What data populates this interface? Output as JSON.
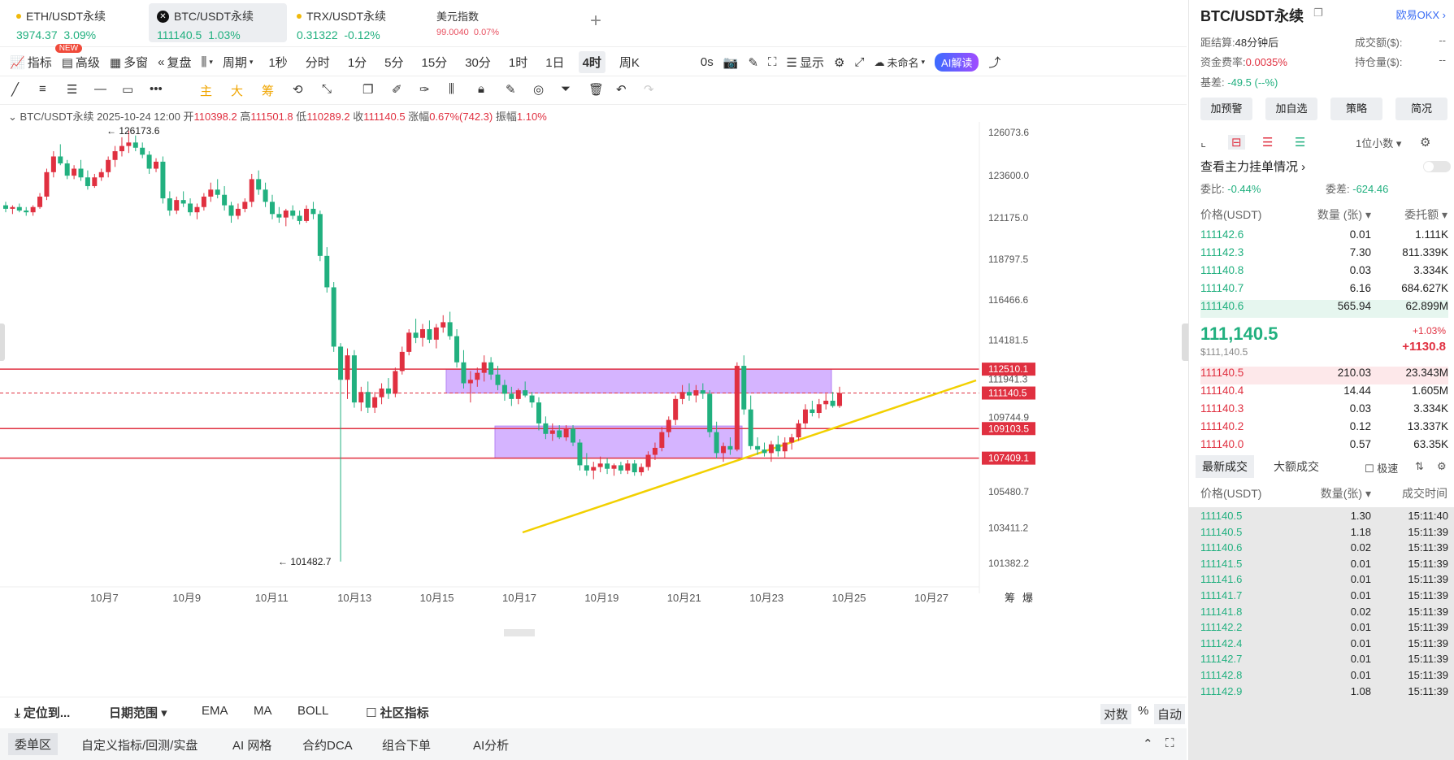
{
  "tabs": [
    {
      "name": "ETH/USDT永续",
      "price": "3974.37",
      "change": "3.09%"
    },
    {
      "name": "BTC/USDT永续",
      "price": "111140.5",
      "change": "1.03%"
    },
    {
      "name": "TRX/USDT永续",
      "price": "0.31322",
      "change": "-0.12%"
    },
    {
      "name": "美元指数",
      "price": "99.0040",
      "change": "0.07%"
    }
  ],
  "new_badge": "NEW",
  "toolbar": {
    "indicators": "指标",
    "advanced": "高级",
    "multi": "多窗",
    "replay": "复盘",
    "period": "周期",
    "intervals": [
      "1秒",
      "分时",
      "1分",
      "5分",
      "15分",
      "30分",
      "1时",
      "1日",
      "4时",
      "周K"
    ],
    "selected_interval": "4时",
    "countdown": "0s",
    "display": "显示",
    "layout": "未命名",
    "ai": "AI解读"
  },
  "drawbar": {
    "main": "主",
    "big": "大",
    "chip": "筹"
  },
  "ohlc": {
    "symbol": "BTC/USDT永续",
    "time": "2025-10-24 12:00",
    "open_label": "开",
    "open": "110398.2",
    "high_label": "高",
    "high": "111501.8",
    "low_label": "低",
    "low": "110289.2",
    "close_label": "收",
    "close": "111140.5",
    "chg_label": "涨幅",
    "chg": "0.67%(742.3)",
    "amp_label": "振幅",
    "amp": "1.10%"
  },
  "chart_data": {
    "type": "candlestick",
    "y_ticks": [
      "126073.6",
      "123600.0",
      "121175.0",
      "118797.5",
      "116466.6",
      "114181.5",
      "111941.3",
      "109744.9",
      "105480.7",
      "103411.2",
      "101382.2"
    ],
    "x_ticks": [
      "10月7",
      "10月9",
      "10月11",
      "10月13",
      "10月15",
      "10月17",
      "10月19",
      "10月21",
      "10月23",
      "10月25",
      "10月27"
    ],
    "high_label": "126173.6",
    "low_label": "101482.7",
    "h_lines": [
      "112510.1",
      "111140.5",
      "109103.5",
      "107409.1"
    ],
    "corner_labels": [
      "筹",
      "爆"
    ],
    "candles": [
      [
        121900,
        122100,
        121500,
        121700
      ],
      [
        121700,
        121900,
        121400,
        121800
      ],
      [
        121800,
        122000,
        121500,
        121600
      ],
      [
        121600,
        121800,
        121300,
        121500
      ],
      [
        121500,
        121900,
        121300,
        121800
      ],
      [
        121800,
        122600,
        121700,
        122400
      ],
      [
        122400,
        124000,
        122200,
        123800
      ],
      [
        123800,
        125000,
        123500,
        124700
      ],
      [
        124700,
        125400,
        124200,
        124300
      ],
      [
        124300,
        124500,
        123400,
        123600
      ],
      [
        123600,
        124200,
        123400,
        124000
      ],
      [
        124000,
        124500,
        123300,
        123500
      ],
      [
        123500,
        123900,
        122800,
        123000
      ],
      [
        123000,
        123700,
        122900,
        123500
      ],
      [
        123500,
        124000,
        123300,
        123800
      ],
      [
        123800,
        124700,
        123500,
        124500
      ],
      [
        124500,
        125300,
        124100,
        125000
      ],
      [
        125000,
        125800,
        124700,
        125300
      ],
      [
        125300,
        126173,
        124900,
        125500
      ],
      [
        125500,
        125900,
        125000,
        125200
      ],
      [
        125200,
        125500,
        124600,
        124800
      ],
      [
        124800,
        125000,
        123700,
        124000
      ],
      [
        124000,
        124600,
        123800,
        124400
      ],
      [
        124400,
        124700,
        122000,
        122300
      ],
      [
        122300,
        122700,
        121300,
        121600
      ],
      [
        121600,
        122400,
        121400,
        122200
      ],
      [
        122200,
        122700,
        121800,
        122000
      ],
      [
        122000,
        122300,
        121300,
        121500
      ],
      [
        121500,
        122000,
        121100,
        121800
      ],
      [
        121800,
        122600,
        121600,
        122400
      ],
      [
        122400,
        123200,
        122100,
        122800
      ],
      [
        122800,
        123400,
        122300,
        122500
      ],
      [
        122500,
        123000,
        121600,
        121900
      ],
      [
        121900,
        122100,
        120900,
        121300
      ],
      [
        121300,
        122000,
        121100,
        121700
      ],
      [
        121700,
        122300,
        121500,
        122100
      ],
      [
        122100,
        123700,
        121800,
        123400
      ],
      [
        123400,
        123900,
        122500,
        122800
      ],
      [
        122800,
        123200,
        121800,
        122100
      ],
      [
        122100,
        122500,
        121100,
        121400
      ],
      [
        121400,
        121800,
        120900,
        121200
      ],
      [
        121200,
        121700,
        120700,
        121600
      ],
      [
        121600,
        121900,
        121100,
        121300
      ],
      [
        121300,
        121600,
        120800,
        121000
      ],
      [
        121000,
        121900,
        120900,
        121700
      ],
      [
        121700,
        122100,
        121100,
        121400
      ],
      [
        121400,
        121600,
        118700,
        119000
      ],
      [
        119000,
        119500,
        116900,
        117200
      ],
      [
        117200,
        117500,
        113500,
        113800
      ],
      [
        113800,
        114000,
        101483,
        111900
      ],
      [
        111900,
        113700,
        110800,
        113300
      ],
      [
        113300,
        113600,
        110300,
        110600
      ],
      [
        110600,
        111500,
        110100,
        111200
      ],
      [
        111200,
        111800,
        110000,
        110300
      ],
      [
        110300,
        111200,
        110000,
        110900
      ],
      [
        110900,
        111700,
        110500,
        111400
      ],
      [
        111400,
        112000,
        110800,
        111100
      ],
      [
        111100,
        112600,
        110900,
        112400
      ],
      [
        112400,
        113800,
        112200,
        113500
      ],
      [
        113500,
        114800,
        113300,
        114600
      ],
      [
        114600,
        115400,
        114000,
        114300
      ],
      [
        114300,
        115100,
        113800,
        114800
      ],
      [
        114800,
        115300,
        114000,
        114200
      ],
      [
        114200,
        115100,
        113700,
        114900
      ],
      [
        114900,
        115600,
        114600,
        115200
      ],
      [
        115200,
        115800,
        114200,
        114400
      ],
      [
        114400,
        114800,
        112600,
        112900
      ],
      [
        112900,
        113600,
        111400,
        111700
      ],
      [
        111700,
        112400,
        110600,
        111900
      ],
      [
        111900,
        112600,
        111500,
        112300
      ],
      [
        112300,
        113300,
        111800,
        112900
      ],
      [
        112900,
        113200,
        111900,
        112200
      ],
      [
        112200,
        112700,
        111300,
        111600
      ],
      [
        111600,
        111900,
        110700,
        111100
      ],
      [
        111100,
        111500,
        110400,
        110800
      ],
      [
        110800,
        111400,
        110500,
        111300
      ],
      [
        111300,
        111800,
        110900,
        111000
      ],
      [
        111000,
        111200,
        110300,
        110600
      ],
      [
        110600,
        110900,
        109000,
        109400
      ],
      [
        109400,
        109800,
        108500,
        108800
      ],
      [
        108800,
        109400,
        108400,
        109000
      ],
      [
        109000,
        109300,
        108500,
        108600
      ],
      [
        108600,
        109300,
        108400,
        109100
      ],
      [
        109100,
        109300,
        108100,
        108300
      ],
      [
        108300,
        108500,
        106700,
        107000
      ],
      [
        107000,
        107700,
        106400,
        106700
      ],
      [
        106700,
        107200,
        106200,
        106900
      ],
      [
        106900,
        107500,
        106600,
        107100
      ],
      [
        107100,
        107400,
        106500,
        106800
      ],
      [
        106800,
        107100,
        106400,
        107000
      ],
      [
        107000,
        107200,
        106500,
        106700
      ],
      [
        106700,
        107300,
        106500,
        107100
      ],
      [
        107100,
        107300,
        106400,
        106600
      ],
      [
        106600,
        107100,
        106400,
        106900
      ],
      [
        106900,
        107800,
        106700,
        107600
      ],
      [
        107600,
        108300,
        107300,
        108000
      ],
      [
        108000,
        109200,
        107800,
        108900
      ],
      [
        108900,
        109800,
        108600,
        109600
      ],
      [
        109600,
        111000,
        109300,
        110800
      ],
      [
        110800,
        111600,
        110500,
        111200
      ],
      [
        111200,
        111700,
        110700,
        111000
      ],
      [
        111000,
        111600,
        110600,
        111300
      ],
      [
        111300,
        111700,
        110800,
        111100
      ],
      [
        111100,
        111300,
        108600,
        108900
      ],
      [
        108900,
        109500,
        107400,
        107700
      ],
      [
        107700,
        108300,
        107200,
        108100
      ],
      [
        108100,
        108600,
        107600,
        107900
      ],
      [
        107900,
        112900,
        107800,
        112700
      ],
      [
        112700,
        113300,
        109900,
        110200
      ],
      [
        110200,
        111000,
        107900,
        108100
      ],
      [
        108100,
        108600,
        107600,
        107900
      ],
      [
        107900,
        108300,
        107500,
        107700
      ],
      [
        107700,
        108400,
        107200,
        108200
      ],
      [
        108200,
        108700,
        107500,
        107800
      ],
      [
        107800,
        108600,
        107400,
        108300
      ],
      [
        108300,
        108800,
        107900,
        108600
      ],
      [
        108600,
        109600,
        108400,
        109400
      ],
      [
        109400,
        110500,
        109100,
        110200
      ],
      [
        110200,
        110700,
        109800,
        110000
      ],
      [
        110000,
        110800,
        109700,
        110500
      ],
      [
        110500,
        111100,
        110200,
        110700
      ],
      [
        110700,
        111200,
        110300,
        110398
      ],
      [
        110398,
        111502,
        110289,
        111140
      ]
    ]
  },
  "bottombar": {
    "locate": "定位到...",
    "date_range": "日期范围",
    "ema": "EMA",
    "ma": "MA",
    "boll": "BOLL",
    "community": "社区指标",
    "log": "对数",
    "pct": "%",
    "auto": "自动"
  },
  "bottom_tabs": [
    "委单区",
    "自定义指标/回测/实盘",
    "AI 网格",
    "合约DCA",
    "组合下单",
    "AI分析"
  ],
  "right": {
    "symbol": "BTC/USDT永续",
    "exchange": "欧易OKX",
    "settle_label": "距结算:",
    "settle": "48分钟后",
    "funding_label": "资金费率:",
    "funding": "0.0035%",
    "basis_label": "基差:",
    "basis": "-49.5 (--%)",
    "vol_label": "成交额($):",
    "vol": "--",
    "oi_label": "持仓量($):",
    "oi": "--",
    "buttons": [
      "加预警",
      "加自选",
      "策略",
      "简况"
    ],
    "decimals": "1位小数",
    "big_orders": "查看主力挂单情况",
    "ratio_label": "委比:",
    "ratio": "-0.44%",
    "diff_label": "委差:",
    "diff": "-624.46",
    "ob_headers": [
      "价格(USDT)",
      "数量 (张)",
      "委托额"
    ],
    "asks": [
      [
        "111142.6",
        "0.01",
        "1.111K"
      ],
      [
        "111142.3",
        "7.30",
        "811.339K"
      ],
      [
        "111140.8",
        "0.03",
        "3.334K"
      ],
      [
        "111140.7",
        "6.16",
        "684.627K"
      ],
      [
        "111140.6",
        "565.94",
        "62.899M"
      ]
    ],
    "last_price": "111,140.5",
    "last_usd": "$111,140.5",
    "last_pct": "+1.03%",
    "last_chg": "+1130.8",
    "bids": [
      [
        "111140.5",
        "210.03",
        "23.343M"
      ],
      [
        "111140.4",
        "14.44",
        "1.605M"
      ],
      [
        "111140.3",
        "0.03",
        "3.334K"
      ],
      [
        "111140.2",
        "0.12",
        "13.337K"
      ],
      [
        "111140.0",
        "0.57",
        "63.35K"
      ]
    ],
    "trade_tabs": [
      "最新成交",
      "大额成交"
    ],
    "fast": "极速",
    "trade_headers": [
      "价格(USDT)",
      "数量(张)",
      "成交时间"
    ],
    "trades": [
      [
        "111140.5",
        "1.30",
        "15:11:40"
      ],
      [
        "111140.5",
        "1.18",
        "15:11:39"
      ],
      [
        "111140.6",
        "0.02",
        "15:11:39"
      ],
      [
        "111141.5",
        "0.01",
        "15:11:39"
      ],
      [
        "111141.6",
        "0.01",
        "15:11:39"
      ],
      [
        "111141.7",
        "0.01",
        "15:11:39"
      ],
      [
        "111141.8",
        "0.02",
        "15:11:39"
      ],
      [
        "111142.2",
        "0.01",
        "15:11:39"
      ],
      [
        "111142.4",
        "0.01",
        "15:11:39"
      ],
      [
        "111142.7",
        "0.01",
        "15:11:39"
      ],
      [
        "111142.8",
        "0.01",
        "15:11:39"
      ],
      [
        "111142.9",
        "1.08",
        "15:11:39"
      ]
    ]
  }
}
